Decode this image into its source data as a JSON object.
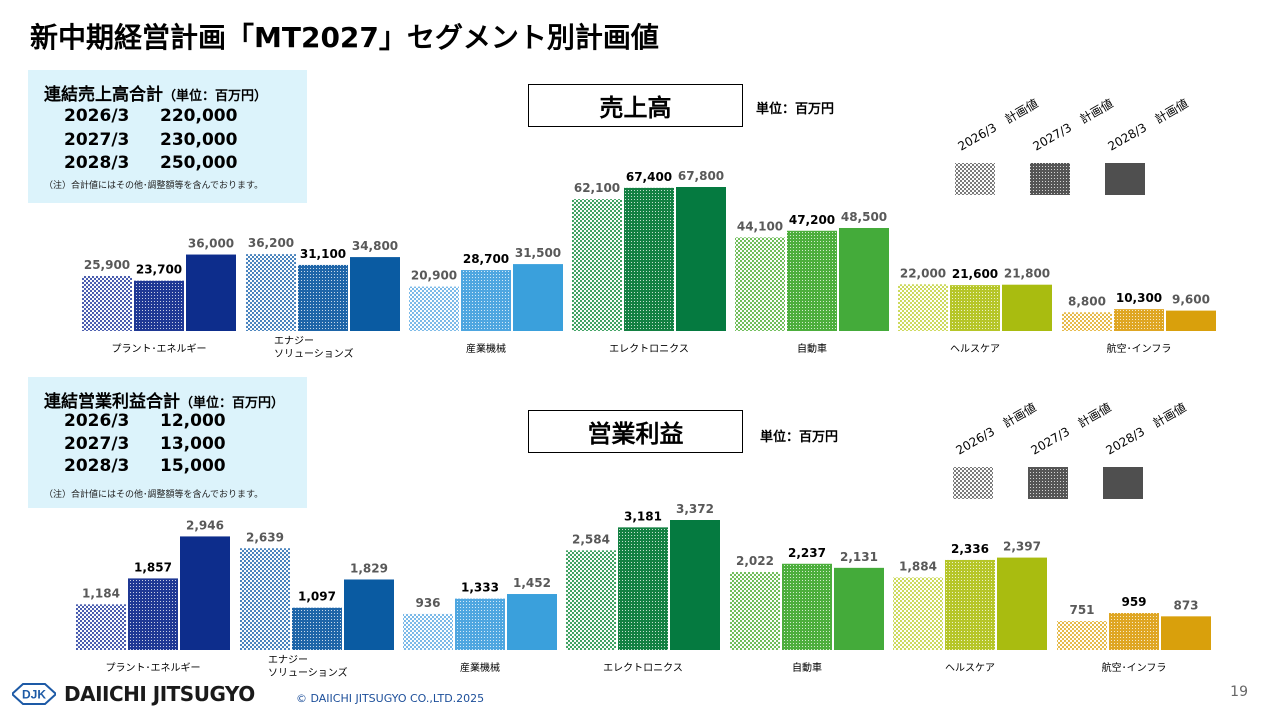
{
  "title": "新中期経営計画「MT2027」セグメント別計画値",
  "colors": {
    "plant": [
      "#3a4fa8",
      "#1f3894",
      "#0d2d8c"
    ],
    "energy": [
      "#3a79b8",
      "#1e65a8",
      "#0a5ba2"
    ],
    "industrial": [
      "#6fb3e6",
      "#4ea6e0",
      "#3aa0dc"
    ],
    "electronics": [
      "#2f9a55",
      "#138042",
      "#057a40"
    ],
    "auto": [
      "#63b84c",
      "#4cae3c",
      "#44ab3a"
    ],
    "health": [
      "#c8d64e",
      "#b6c628",
      "#a9bc10"
    ],
    "aero": [
      "#e4b43a",
      "#dfa623",
      "#d9a00c"
    ],
    "legend": [
      "#6e6e6e",
      "#555555",
      "#4f4f4f"
    ]
  },
  "sales_summary": {
    "heading": "連結売上高合計",
    "unit": "（単位：百万円）",
    "rows": [
      {
        "year": "2026/3",
        "value": "220,000"
      },
      {
        "year": "2027/3",
        "value": "230,000"
      },
      {
        "year": "2028/3",
        "value": "250,000"
      }
    ],
    "note": "（注）合計値にはその他･調整額等を含んでおります。"
  },
  "profit_summary": {
    "heading": "連結営業利益合計",
    "unit": "（単位：百万円）",
    "rows": [
      {
        "year": "2026/3",
        "value": "12,000"
      },
      {
        "year": "2027/3",
        "value": "13,000"
      },
      {
        "year": "2028/3",
        "value": "15,000"
      }
    ],
    "note": "（注）合計値にはその他･調整額等を含んでおります。"
  },
  "chart_data": [
    {
      "type": "bar",
      "title": "売上高",
      "unit_label": "単位：百万円",
      "categories": [
        "プラント･エネルギー",
        "エナジー\nソリューションズ",
        "産業機械",
        "エレクトロニクス",
        "自動車",
        "ヘルスケア",
        "航空･インフラ"
      ],
      "series": [
        {
          "name": "2026/3　計画値",
          "values": [
            25900,
            36200,
            20900,
            62100,
            44100,
            22000,
            8800
          ]
        },
        {
          "name": "2027/3　計画値",
          "values": [
            23700,
            31100,
            28700,
            67400,
            47200,
            21600,
            10300
          ]
        },
        {
          "name": "2028/3　計画値",
          "values": [
            36000,
            34800,
            31500,
            67800,
            48500,
            21800,
            9600
          ]
        }
      ],
      "labels": [
        [
          "25,900",
          "23,700",
          "36,000"
        ],
        [
          "36,200",
          "31,100",
          "34,800"
        ],
        [
          "20,900",
          "28,700",
          "31,500"
        ],
        [
          "62,100",
          "67,400",
          "67,800"
        ],
        [
          "44,100",
          "47,200",
          "48,500"
        ],
        [
          "22,000",
          "21,600",
          "21,800"
        ],
        [
          "8,800",
          "10,300",
          "9,600"
        ]
      ],
      "legend_position": "top-right",
      "grid": false
    },
    {
      "type": "bar",
      "title": "営業利益",
      "unit_label": "単位：百万円",
      "categories": [
        "プラント･エネルギー",
        "エナジー\nソリューションズ",
        "産業機械",
        "エレクトロニクス",
        "自動車",
        "ヘルスケア",
        "航空･インフラ"
      ],
      "series": [
        {
          "name": "2026/3　計画値",
          "values": [
            1184,
            2639,
            936,
            2584,
            2022,
            1884,
            751
          ]
        },
        {
          "name": "2027/3　計画値",
          "values": [
            1857,
            1097,
            1333,
            3181,
            2237,
            2336,
            959
          ]
        },
        {
          "name": "2028/3　計画値",
          "values": [
            2946,
            1829,
            1452,
            3372,
            2131,
            2397,
            873
          ]
        }
      ],
      "labels": [
        [
          "1,184",
          "1,857",
          "2,946"
        ],
        [
          "2,639",
          "1,097",
          "1,829"
        ],
        [
          "936",
          "1,333",
          "1,452"
        ],
        [
          "2,584",
          "3,181",
          "3,372"
        ],
        [
          "2,022",
          "2,237",
          "2,131"
        ],
        [
          "1,884",
          "2,336",
          "2,397"
        ],
        [
          "751",
          "959",
          "873"
        ]
      ],
      "legend_position": "top-right",
      "grid": false
    }
  ],
  "footer": {
    "logo_mark": "DJK",
    "brand": "DAIICHI JITSUGYO",
    "copyright": "© DAIICHI JITSUGYO CO.,LTD.2025",
    "page": "19"
  }
}
